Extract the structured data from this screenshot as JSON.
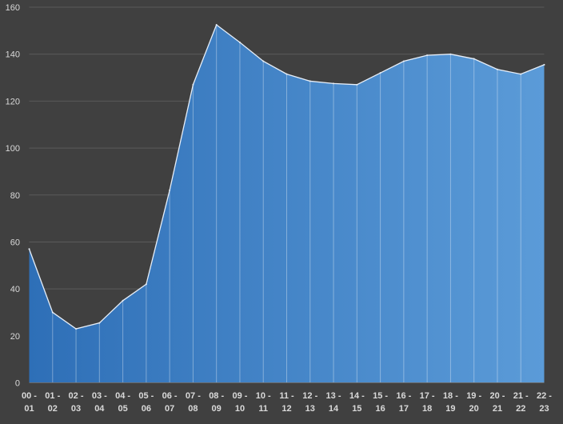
{
  "chart_data": {
    "type": "area",
    "title": "",
    "xlabel": "",
    "ylabel": "",
    "ylim": [
      0,
      160
    ],
    "yticks": [
      0,
      20,
      40,
      60,
      80,
      100,
      120,
      140,
      160
    ],
    "grid": true,
    "legend": "none",
    "categories": [
      [
        "00 -",
        "01"
      ],
      [
        "01 -",
        "02"
      ],
      [
        "02 -",
        "03"
      ],
      [
        "03 -",
        "04"
      ],
      [
        "04 -",
        "05"
      ],
      [
        "05 -",
        "06"
      ],
      [
        "06 -",
        "07"
      ],
      [
        "07 -",
        "08"
      ],
      [
        "08 -",
        "09"
      ],
      [
        "09 -",
        "10"
      ],
      [
        "10 -",
        "11"
      ],
      [
        "11 -",
        "12"
      ],
      [
        "12 -",
        "13"
      ],
      [
        "13 -",
        "14"
      ],
      [
        "14 -",
        "15"
      ],
      [
        "15 -",
        "16"
      ],
      [
        "16 -",
        "17"
      ],
      [
        "17 -",
        "18"
      ],
      [
        "18 -",
        "19"
      ],
      [
        "19 -",
        "20"
      ],
      [
        "20 -",
        "21"
      ],
      [
        "21 -",
        "22"
      ],
      [
        "22 -",
        "23"
      ]
    ],
    "values": [
      57,
      30,
      23,
      25.5,
      35,
      42,
      82,
      127,
      152.5,
      145,
      137,
      131.5,
      128.5,
      127.5,
      127,
      132,
      137,
      139.5,
      140,
      138,
      133.5,
      131.5,
      135.5
    ],
    "colors": {
      "background": "#404040",
      "gridline": "#5a5a5a",
      "area_start": "#2e6fb7",
      "area_end": "#5b9bd8",
      "line": "#e6eef8",
      "tick_text": "#d9d9d9"
    }
  }
}
